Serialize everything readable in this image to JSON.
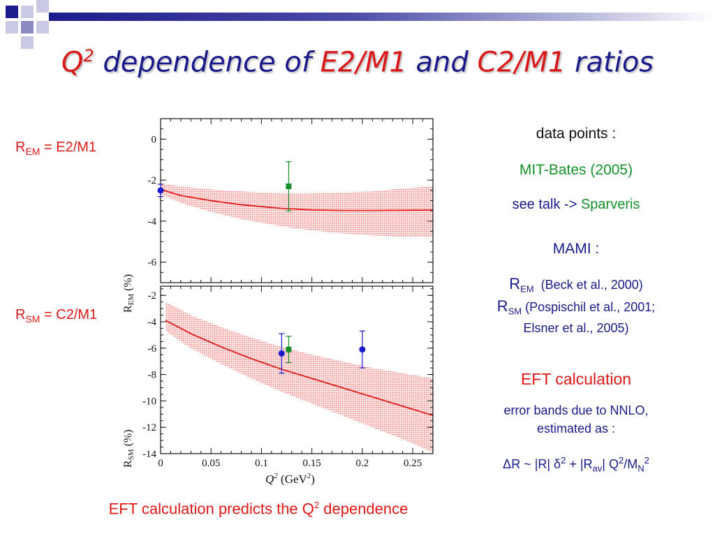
{
  "slide": {
    "title_parts": [
      "Q",
      "2",
      " dependence of ",
      "E2/M1",
      " and ",
      "C2/M1",
      " ratios"
    ],
    "label_rem": [
      "R",
      "EM",
      " = E2/M1"
    ],
    "label_rsm": [
      "R",
      "SM",
      " = C2/M1"
    ],
    "bottom_parts": [
      "EFT calculation predicts the Q",
      "2",
      " dependence"
    ]
  },
  "legend": {
    "data_points": "data points :",
    "mit_bates": "MIT-Bates (2005)",
    "see_talk": "see talk ->",
    "sparveris": "Sparveris",
    "mami": "MAMI :",
    "rem": [
      "R",
      "EM",
      "(Beck et al., 2000)"
    ],
    "rsm": [
      "R",
      "SM",
      "(Pospischil et al., 2001;"
    ],
    "elsner": "Elsner et al., 2005)",
    "eft": "EFT calculation",
    "error_bands": "error bands due to NNLO,",
    "estimated": "estimated as :",
    "formula": [
      "ΔR ~ |R| δ",
      "2",
      " + |R",
      "av",
      "| Q",
      "2",
      "/M",
      "N",
      "2"
    ]
  },
  "colors": {
    "title": "#1a1a8a",
    "accent_red": "#d91919",
    "mit": "#16912b",
    "mami": "#1a1acc",
    "band": "#f08a8a",
    "curve": "#e01818"
  },
  "chart_data": [
    {
      "type": "line",
      "panel": "top",
      "ylabel": [
        "R",
        "EM",
        " (%)"
      ],
      "xlim": [
        0,
        0.27
      ],
      "ylim": [
        -7,
        1
      ],
      "yticks": [
        "0",
        "-2",
        "-4",
        "-6"
      ],
      "ytick_values": [
        0,
        -2,
        -4,
        -6
      ],
      "curve": {
        "x": [
          0,
          0.02,
          0.05,
          0.08,
          0.12,
          0.15,
          0.18,
          0.21,
          0.24,
          0.27
        ],
        "y": [
          -2.45,
          -2.75,
          -3.0,
          -3.2,
          -3.38,
          -3.45,
          -3.48,
          -3.48,
          -3.47,
          -3.46
        ]
      },
      "band_lower": [
        -2.7,
        -3.1,
        -3.55,
        -3.9,
        -4.25,
        -4.45,
        -4.6,
        -4.7,
        -4.75,
        -4.75
      ],
      "band_upper": [
        -2.15,
        -2.3,
        -2.45,
        -2.55,
        -2.65,
        -2.65,
        -2.6,
        -2.55,
        -2.4,
        -2.3
      ],
      "points": [
        {
          "source": "MAMI",
          "x": 0.0,
          "y": -2.5,
          "err": 0.3,
          "marker": "circle"
        },
        {
          "source": "MIT-Bates",
          "x": 0.127,
          "y": -2.3,
          "err": 1.2,
          "marker": "square"
        }
      ]
    },
    {
      "type": "line",
      "panel": "bottom",
      "ylabel": [
        "R",
        "SM",
        " (%)"
      ],
      "xlabel": [
        "Q",
        "2",
        " (GeV",
        "2",
        ")"
      ],
      "xlim": [
        0,
        0.27
      ],
      "ylim": [
        -14,
        -1.3
      ],
      "yticks": [
        "-2",
        "-4",
        "-6",
        "-8",
        "-10",
        "-12",
        "-14"
      ],
      "ytick_values": [
        -2,
        -4,
        -6,
        -8,
        -10,
        -12,
        -14
      ],
      "xticks": [
        "0",
        "0.05",
        "0.1",
        "0.15",
        "0.2",
        "0.25"
      ],
      "xtick_values": [
        0,
        0.05,
        0.1,
        0.15,
        0.2,
        0.25
      ],
      "curve": {
        "x": [
          0.005,
          0.03,
          0.06,
          0.09,
          0.12,
          0.15,
          0.18,
          0.21,
          0.24,
          0.27
        ],
        "y": [
          -3.9,
          -4.9,
          -5.9,
          -6.8,
          -7.6,
          -8.3,
          -9.0,
          -9.7,
          -10.4,
          -11.1
        ]
      },
      "band_lower": [
        -4.7,
        -6.0,
        -7.2,
        -8.3,
        -9.3,
        -10.2,
        -11.1,
        -12.0,
        -12.9,
        -13.9
      ],
      "band_upper": [
        -2.5,
        -3.5,
        -4.4,
        -5.2,
        -5.9,
        -6.5,
        -7.0,
        -7.5,
        -7.9,
        -8.3
      ],
      "points": [
        {
          "source": "MAMI",
          "x": 0.12,
          "y": -6.4,
          "err": 1.5,
          "marker": "circle"
        },
        {
          "source": "MIT-Bates",
          "x": 0.127,
          "y": -6.1,
          "err": 1.0,
          "marker": "square"
        },
        {
          "source": "MAMI",
          "x": 0.2,
          "y": -6.1,
          "err": 1.4,
          "marker": "circle"
        }
      ]
    }
  ]
}
